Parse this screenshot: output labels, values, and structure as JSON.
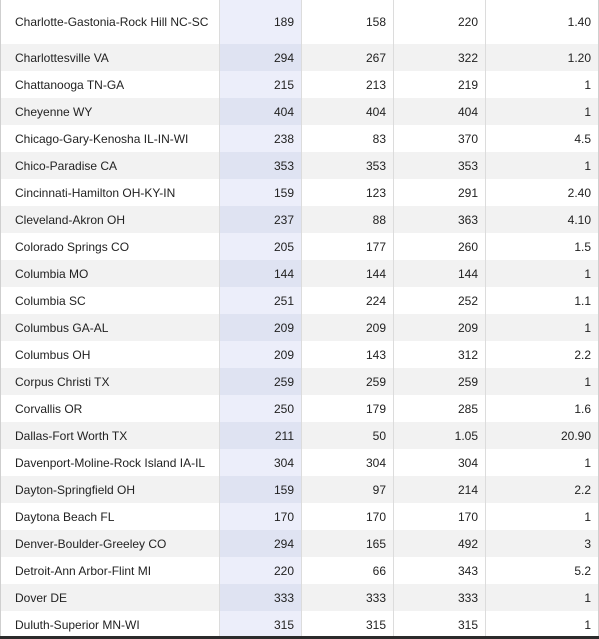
{
  "table": {
    "rows": [
      [
        "Charlotte-Gastonia-Rock Hill NC-SC",
        "189",
        "158",
        "220",
        "1.40"
      ],
      [
        "Charlottesville VA",
        "294",
        "267",
        "322",
        "1.20"
      ],
      [
        "Chattanooga TN-GA",
        "215",
        "213",
        "219",
        "1"
      ],
      [
        "Cheyenne WY",
        "404",
        "404",
        "404",
        "1"
      ],
      [
        "Chicago-Gary-Kenosha IL-IN-WI",
        "238",
        "83",
        "370",
        "4.5"
      ],
      [
        "Chico-Paradise CA",
        "353",
        "353",
        "353",
        "1"
      ],
      [
        "Cincinnati-Hamilton OH-KY-IN",
        "159",
        "123",
        "291",
        "2.40"
      ],
      [
        "Cleveland-Akron OH",
        "237",
        "88",
        "363",
        "4.10"
      ],
      [
        "Colorado Springs CO",
        "205",
        "177",
        "260",
        "1.5"
      ],
      [
        "Columbia MO",
        "144",
        "144",
        "144",
        "1"
      ],
      [
        "Columbia SC",
        "251",
        "224",
        "252",
        "1.1"
      ],
      [
        "Columbus GA-AL",
        "209",
        "209",
        "209",
        "1"
      ],
      [
        "Columbus OH",
        "209",
        "143",
        "312",
        "2.2"
      ],
      [
        "Corpus Christi TX",
        "259",
        "259",
        "259",
        "1"
      ],
      [
        "Corvallis OR",
        "250",
        "179",
        "285",
        "1.6"
      ],
      [
        "Dallas-Fort Worth TX",
        "211",
        "50",
        "1.05",
        "20.90"
      ],
      [
        "Davenport-Moline-Rock Island IA-IL",
        "304",
        "304",
        "304",
        "1"
      ],
      [
        "Dayton-Springfield OH",
        "159",
        "97",
        "214",
        "2.2"
      ],
      [
        "Daytona Beach FL",
        "170",
        "170",
        "170",
        "1"
      ],
      [
        "Denver-Boulder-Greeley CO",
        "294",
        "165",
        "492",
        "3"
      ],
      [
        "Detroit-Ann Arbor-Flint MI",
        "220",
        "66",
        "343",
        "5.2"
      ],
      [
        "Dover DE",
        "333",
        "333",
        "333",
        "1"
      ],
      [
        "Duluth-Superior MN-WI",
        "315",
        "315",
        "315",
        "1"
      ]
    ]
  },
  "colors": {
    "row_odd": "#f2f2f2",
    "row_even": "#ffffff",
    "highlight_column": "#dfe3f2"
  }
}
